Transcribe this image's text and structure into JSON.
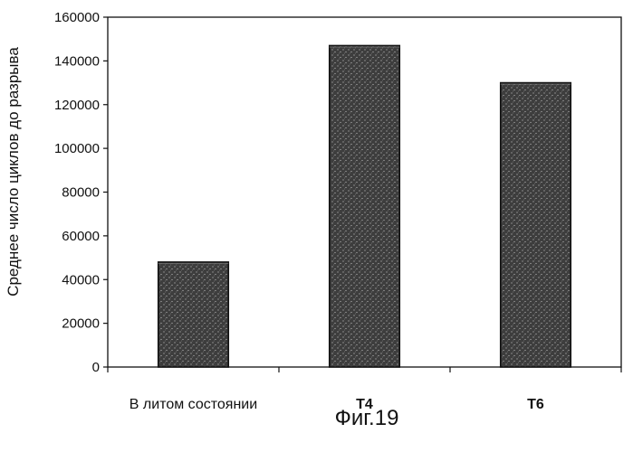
{
  "chart_data": {
    "type": "bar",
    "categories": [
      "В литом состоянии",
      "T4",
      "T6"
    ],
    "values": [
      48000,
      147000,
      130000
    ],
    "title": "",
    "xlabel": "",
    "ylabel": "Среднее число циклов до разрыва",
    "ylim": [
      0,
      160000
    ],
    "yticks": [
      0,
      20000,
      40000,
      60000,
      80000,
      100000,
      120000,
      140000,
      160000
    ],
    "grid": false,
    "legend": "none",
    "bar_color": "#4a4a4a"
  },
  "caption": "Фиг.19"
}
